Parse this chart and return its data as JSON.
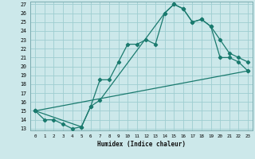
{
  "xlabel": "Humidex (Indice chaleur)",
  "bg_color": "#cce8ea",
  "grid_color": "#9ecdd0",
  "line_color": "#1a7a6e",
  "xlim": [
    -0.5,
    23.5
  ],
  "ylim": [
    12.8,
    27.3
  ],
  "xticks": [
    0,
    1,
    2,
    3,
    4,
    5,
    6,
    7,
    8,
    9,
    10,
    11,
    12,
    13,
    14,
    15,
    16,
    17,
    18,
    19,
    20,
    21,
    22,
    23
  ],
  "yticks": [
    13,
    14,
    15,
    16,
    17,
    18,
    19,
    20,
    21,
    22,
    23,
    24,
    25,
    26,
    27
  ],
  "line1_x": [
    0,
    1,
    2,
    3,
    4,
    5,
    6,
    7,
    8,
    9,
    10,
    11,
    12,
    13,
    14,
    15,
    16,
    17,
    18,
    19,
    20,
    21,
    22,
    23
  ],
  "line1_y": [
    15.0,
    14.0,
    14.0,
    13.5,
    13.0,
    13.2,
    15.5,
    18.5,
    18.5,
    20.5,
    22.5,
    22.5,
    23.0,
    22.5,
    26.0,
    27.0,
    26.5,
    25.0,
    25.3,
    24.5,
    21.0,
    21.0,
    20.5,
    19.5
  ],
  "line2_x": [
    0,
    5,
    6,
    7,
    14,
    15,
    16,
    17,
    18,
    19,
    20,
    21,
    22,
    23
  ],
  "line2_y": [
    15.0,
    13.2,
    15.5,
    16.2,
    26.0,
    27.0,
    26.5,
    25.0,
    25.3,
    24.5,
    23.0,
    21.5,
    21.0,
    20.5
  ],
  "line3_x": [
    0,
    23
  ],
  "line3_y": [
    15.0,
    19.5
  ]
}
